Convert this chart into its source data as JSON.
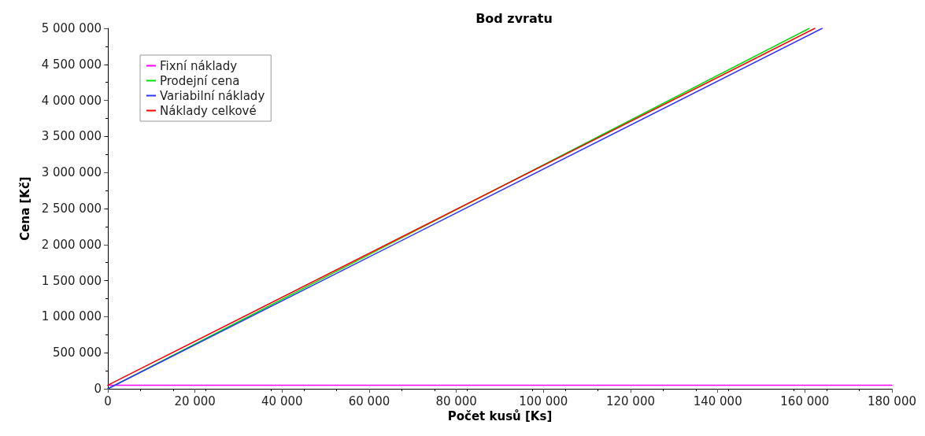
{
  "chart_data": {
    "type": "line",
    "title": "Bod zvratu",
    "xlabel": "Počet kusů [Ks]",
    "ylabel": "Cena [Kč]",
    "xlim": [
      0,
      180000
    ],
    "xticks": [
      0,
      {
        "value": 20000,
        "label": "20 000"
      },
      {
        "value": 40000,
        "label": "40 000"
      },
      {
        "value": 60000,
        "label": "60 000"
      },
      {
        "value": 80000,
        "label": "80 000"
      },
      {
        "value": 100000,
        "label": "100 000"
      },
      {
        "value": 120000,
        "label": "120 000"
      },
      {
        "value": 140000,
        "label": "140 000"
      },
      {
        "value": 160000,
        "label": "160 000"
      },
      {
        "value": 180000,
        "label": "180 000"
      }
    ],
    "ylim": [
      0,
      5000000
    ],
    "yticks": [
      0,
      {
        "value": 500000,
        "label": "500 000"
      },
      {
        "value": 1000000,
        "label": "1 000 000"
      },
      {
        "value": 1500000,
        "label": "1 500 000"
      },
      {
        "value": 2000000,
        "label": "2 000 000"
      },
      {
        "value": 2500000,
        "label": "2 500 000"
      },
      {
        "value": 3000000,
        "label": "3 000 000"
      },
      {
        "value": 3500000,
        "label": "3 500 000"
      },
      {
        "value": 4000000,
        "label": "4 000 000"
      },
      {
        "value": 4500000,
        "label": "4 500 000"
      },
      {
        "value": 5000000,
        "label": "5 000 000"
      }
    ],
    "grid": false,
    "legend": "top left",
    "marker": "none",
    "line_style": "solid",
    "series": [
      {
        "name": "Fixní náklady",
        "color": "#ff00ff",
        "x": [
          0,
          180000
        ],
        "values": [
          50000,
          50000
        ]
      },
      {
        "name": "Prodejní cena",
        "color": "#00dd00",
        "x": [
          0,
          161000
        ],
        "values": [
          0,
          5000000
        ]
      },
      {
        "name": "Variabilní náklady",
        "color": "#3333ff",
        "x": [
          0,
          164000
        ],
        "values": [
          0,
          5000000
        ]
      },
      {
        "name": "Náklady celkové",
        "color": "#ff0000",
        "x": [
          0,
          162300
        ],
        "values": [
          50000,
          5000000
        ]
      }
    ]
  }
}
